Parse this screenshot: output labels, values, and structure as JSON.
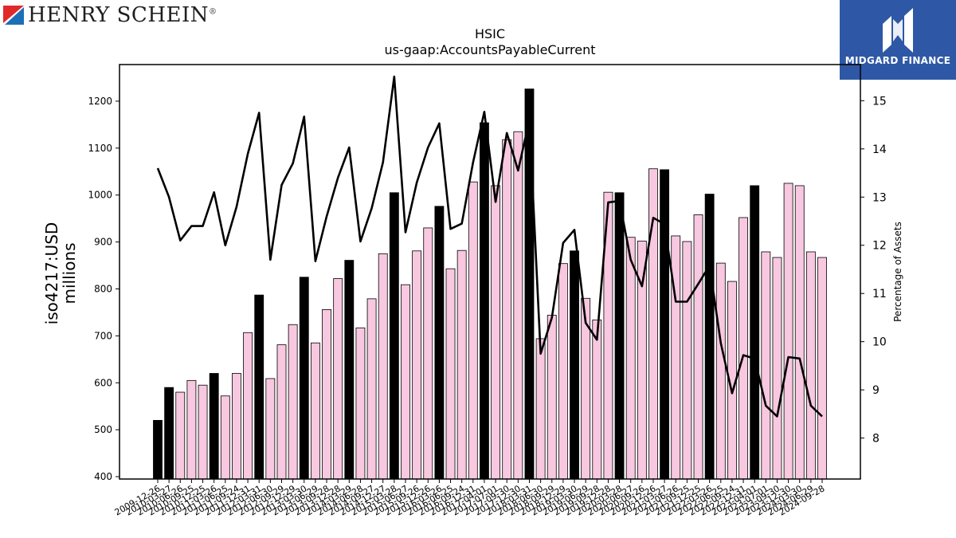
{
  "logos": {
    "left": {
      "name": "HENRY SCHEIN",
      "mark": "®",
      "icon": "henry-schein-flag-icon",
      "colors": [
        "#e0292b",
        "#1c6fb7"
      ]
    },
    "right": {
      "name": "MIDGARD FINANCE",
      "icon": "midgard-m-icon",
      "background": "#2e58a6"
    }
  },
  "chart_data": {
    "type": "bar",
    "title": "HSIC",
    "subtitle": "us-gaap:AccountsPayableCurrent",
    "ylabel": "iso4217:USD\nmillions",
    "y2label": "Percentage of Assets",
    "ylim": [
      395,
      1278
    ],
    "y2lim": [
      7.15,
      15.75
    ],
    "yticks": [
      400,
      500,
      600,
      700,
      800,
      900,
      1000,
      1100,
      1200
    ],
    "y2ticks": [
      8,
      9,
      10,
      11,
      12,
      13,
      14,
      15
    ],
    "grid": false,
    "colors": {
      "annual_bar": "#000000",
      "quarter_bar": "#f8c8e0",
      "line": "#000000"
    },
    "categories": [
      "2009-12-26",
      "2010-03-27",
      "2010-06-26",
      "2010-09-25",
      "2010-12-25",
      "2011-03-26",
      "2011-06-25",
      "2011-09-24",
      "2011-12-31",
      "2012-03-31",
      "2012-06-30",
      "2012-09-29",
      "2012-12-29",
      "2013-03-30",
      "2013-06-29",
      "2013-09-28",
      "2013-12-28",
      "2014-03-29",
      "2014-06-28",
      "2014-09-27",
      "2014-12-27",
      "2015-03-28",
      "2015-06-27",
      "2015-09-26",
      "2015-12-26",
      "2016-03-26",
      "2016-06-25",
      "2016-09-24",
      "2016-12-31",
      "2017-04-01",
      "2017-07-01",
      "2017-09-30",
      "2017-12-30",
      "2018-03-31",
      "2018-06-30",
      "2018-09-29",
      "2018-12-29",
      "2019-03-30",
      "2019-06-29",
      "2019-09-28",
      "2019-12-28",
      "2020-03-28",
      "2020-06-27",
      "2020-09-26",
      "2020-12-26",
      "2021-03-27",
      "2021-06-26",
      "2021-09-25",
      "2021-12-25",
      "2022-03-26",
      "2022-06-25",
      "2022-09-24",
      "2022-12-31",
      "2023-04-01",
      "2023-07-01",
      "2023-09-30",
      "2023-12-30",
      "2024-03-30",
      "2024-06-29",
      "2024-09-28"
    ],
    "xticklabels": [
      "2009-12-26",
      "2010-03-27",
      "2010-06-26",
      "2010-09-25",
      "2010-12-25",
      "2011-03-26",
      "2011-06-25",
      "2011-09-24",
      "2011-12-31",
      "2012-03-31",
      "2012-06-30",
      "2012-09-29",
      "2012-12-29",
      "2013-03-30",
      "2013-06-29",
      "2013-09-28",
      "2013-12-28",
      "2014-03-29",
      "2014-06-28",
      "2014-09-27",
      "2014-12-27",
      "2015-03-28",
      "2015-06-27",
      "2015-09-26",
      "2015-12-26",
      "2016-03-26",
      "2016-06-25",
      "2016-09-24",
      "2016-12-31",
      "2017-04-01",
      "2017-07-01",
      "2017-09-30",
      "2017-12-30",
      "2018-03-31",
      "2018-06-30",
      "2018-09-29",
      "2018-12-29",
      "2019-03-30",
      "2019-06-29",
      "2019-09-28",
      "2019-12-28",
      "2020-03-28",
      "2020-06-27",
      "2020-09-26",
      "2020-12-26",
      "2021-03-27",
      "2021-06-26",
      "2021-09-25",
      "2021-12-25",
      "2022-03-26",
      "2022-06-25",
      "2022-09-24",
      "2022-12-31",
      "2023-04-01",
      "2023-07-01",
      "2023-09-30",
      "2023-12-30",
      "2024-03-30",
      "2024-06-29",
      "2024-09-28"
    ],
    "bar_values": [
      520,
      590,
      580,
      605,
      595,
      620,
      572,
      620,
      707,
      787,
      609,
      681,
      724,
      825,
      685,
      756,
      822,
      861,
      717,
      779,
      875,
      1005,
      809,
      881,
      930,
      976,
      843,
      882,
      1028,
      1154,
      1020,
      1118,
      1135,
      1226,
      694,
      744,
      854,
      881,
      780,
      734,
      1006,
      1005,
      910,
      902,
      1056,
      1054,
      913,
      901,
      958,
      1002,
      855,
      816,
      952,
      1020,
      879,
      867,
      1025,
      1020,
      879,
      867
    ],
    "annual_flags": [
      1,
      1,
      0,
      0,
      0,
      1,
      0,
      0,
      0,
      1,
      0,
      0,
      0,
      1,
      0,
      0,
      0,
      1,
      0,
      0,
      0,
      1,
      0,
      0,
      0,
      1,
      0,
      0,
      0,
      1,
      0,
      0,
      0,
      1,
      0,
      0,
      0,
      1,
      0,
      0,
      0,
      1,
      0,
      0,
      0,
      1,
      0,
      0,
      0,
      1,
      0,
      0,
      0,
      1,
      0,
      0,
      0,
      0,
      0,
      0
    ],
    "line_values": [
      13.6,
      13.0,
      12.1,
      12.4,
      12.4,
      13.1,
      12.0,
      12.8,
      13.9,
      14.75,
      11.7,
      13.25,
      13.7,
      14.67,
      11.67,
      12.6,
      13.4,
      14.03,
      12.08,
      12.77,
      13.72,
      15.5,
      12.27,
      13.3,
      14.03,
      14.53,
      12.34,
      12.45,
      13.72,
      14.77,
      12.9,
      14.33,
      13.55,
      14.6,
      9.75,
      10.5,
      12.05,
      12.32,
      10.39,
      10.04,
      12.89,
      12.92,
      11.7,
      11.15,
      12.57,
      12.44,
      10.83,
      10.83,
      11.2,
      11.58,
      9.97,
      8.93,
      9.72,
      9.65,
      8.67,
      8.45,
      9.68,
      9.65,
      8.67,
      8.45
    ]
  }
}
